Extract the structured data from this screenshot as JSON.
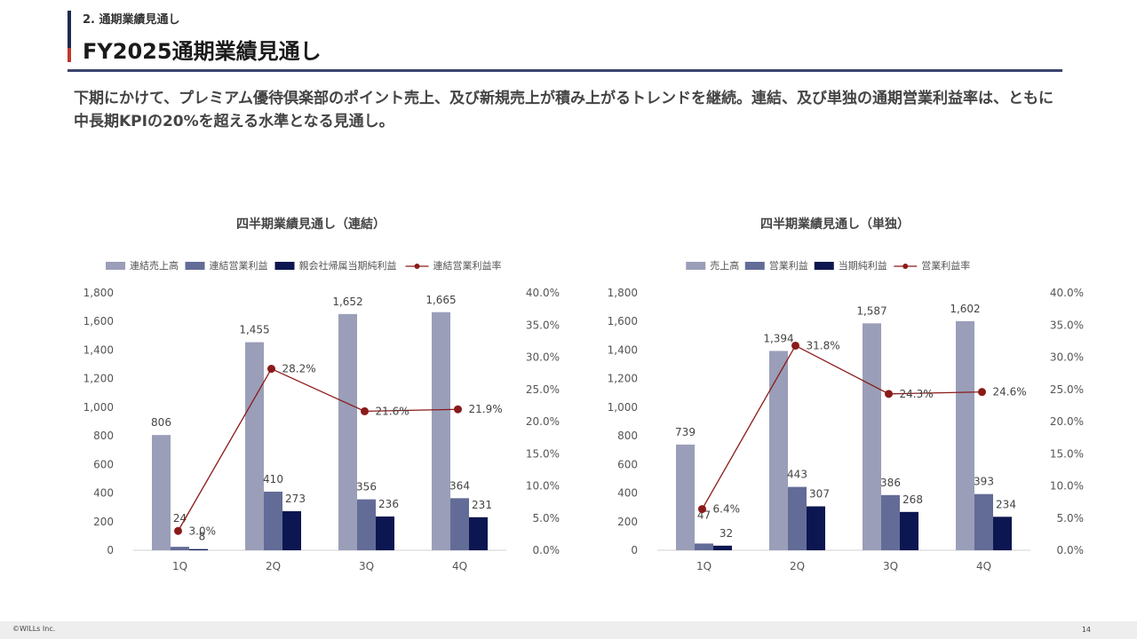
{
  "header": {
    "section": "2. 通期業績見通し",
    "title": "FY2025通期業績見通し"
  },
  "lead": "下期にかけて、プレミアム優待倶楽部のポイント売上、及び新規売上が積み上がるトレンドを継続。連結、及び単独の通期営業利益率は、ともに中長期KPIの20%を超える水準となる見通し。",
  "colors": {
    "bar1": "#9a9eb8",
    "bar2": "#636c97",
    "bar3": "#0c1650",
    "line": "#8b1a1a",
    "header_navy": "#1f2a52",
    "header_red": "#c0392b"
  },
  "footer": {
    "copyright": "©WILLs Inc.",
    "page": "14"
  },
  "chart_data": [
    {
      "type": "bar",
      "title": "四半期業績見通し（連結）",
      "categories": [
        "1Q",
        "2Q",
        "3Q",
        "4Q"
      ],
      "series": [
        {
          "name": "連結売上高",
          "values": [
            806,
            1455,
            1652,
            1665
          ],
          "labels": [
            "806",
            "1,455",
            "1,652",
            "1,665"
          ]
        },
        {
          "name": "連結営業利益",
          "values": [
            24,
            410,
            356,
            364
          ],
          "labels": [
            "24",
            "410",
            "356",
            "364"
          ]
        },
        {
          "name": "親会社帰属当期純利益",
          "values": [
            8,
            273,
            236,
            231
          ],
          "labels": [
            "8",
            "273",
            "236",
            "231"
          ]
        }
      ],
      "line": {
        "name": "連結営業利益率",
        "values": [
          3.0,
          28.2,
          21.6,
          21.9
        ],
        "labels": [
          "3.0%",
          "28.2%",
          "21.6%",
          "21.9%"
        ]
      },
      "ylim": [
        0,
        1800
      ],
      "yticks": [
        "0",
        "200",
        "400",
        "600",
        "800",
        "1,000",
        "1,200",
        "1,400",
        "1,600",
        "1,800"
      ],
      "y2lim": [
        0,
        40
      ],
      "y2ticks": [
        "0.0%",
        "5.0%",
        "10.0%",
        "15.0%",
        "20.0%",
        "25.0%",
        "30.0%",
        "35.0%",
        "40.0%"
      ],
      "legend": "top"
    },
    {
      "type": "bar",
      "title": "四半期業績見通し（単独）",
      "categories": [
        "1Q",
        "2Q",
        "3Q",
        "4Q"
      ],
      "series": [
        {
          "name": "売上高",
          "values": [
            739,
            1394,
            1587,
            1602
          ],
          "labels": [
            "739",
            "1,394",
            "1,587",
            "1,602"
          ]
        },
        {
          "name": "営業利益",
          "values": [
            47,
            443,
            386,
            393
          ],
          "labels": [
            "47",
            "443",
            "386",
            "393"
          ]
        },
        {
          "name": "当期純利益",
          "values": [
            32,
            307,
            268,
            234
          ],
          "labels": [
            "32",
            "307",
            "268",
            "234"
          ]
        }
      ],
      "line": {
        "name": "営業利益率",
        "values": [
          6.4,
          31.8,
          24.3,
          24.6
        ],
        "labels": [
          "6.4%",
          "31.8%",
          "24.3%",
          "24.6%"
        ]
      },
      "ylim": [
        0,
        1800
      ],
      "yticks": [
        "0",
        "200",
        "400",
        "600",
        "800",
        "1,000",
        "1,200",
        "1,400",
        "1,600",
        "1,800"
      ],
      "y2lim": [
        0,
        40
      ],
      "y2ticks": [
        "0.0%",
        "5.0%",
        "10.0%",
        "15.0%",
        "20.0%",
        "25.0%",
        "30.0%",
        "35.0%",
        "40.0%"
      ],
      "legend": "top"
    }
  ]
}
